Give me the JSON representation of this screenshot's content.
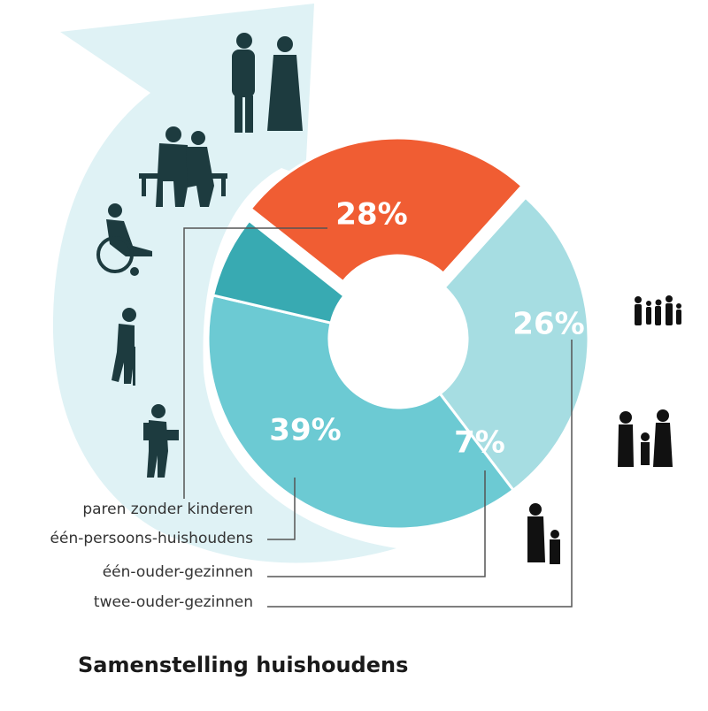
{
  "chart_data": {
    "type": "pie",
    "title": "Samenstelling huishoudens",
    "categories": [
      "paren zonder kinderen",
      "één-persoons-huishoudens",
      "één-ouder-gezinnen",
      "twee-ouder-gezinnen"
    ],
    "values": [
      28,
      39,
      7,
      26
    ],
    "value_labels": [
      "28%",
      "39%",
      "7%",
      "26%"
    ],
    "colors": [
      "#a6dde2",
      "#6ccad3",
      "#38aab2",
      "#f05d33"
    ],
    "donut": true,
    "legend_position": "bottom-left"
  },
  "decor": {
    "arrow_color": "#dff2f5",
    "silhouette_color": "#1d3b3f",
    "family_icon_color": "#111111",
    "icons": [
      "couple-icon",
      "elderly-couple-bench-icon",
      "wheelchair-person-icon",
      "person-with-cane-icon",
      "student-with-bag-icon",
      "large-family-icon",
      "two-parent-family-icon",
      "single-parent-icon"
    ]
  }
}
